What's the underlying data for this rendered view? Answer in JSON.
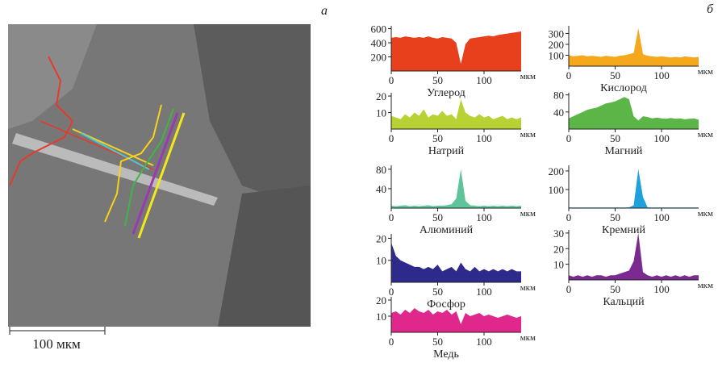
{
  "panels": {
    "a": {
      "label": "а",
      "scale_bar": "100 мкм"
    },
    "b": {
      "label": "б"
    }
  },
  "chart_data": [
    {
      "type": "area",
      "title": "Углерод",
      "xlabel": "мкм",
      "color": "#e8401c",
      "xlim": [
        0,
        140
      ],
      "xticks": [
        0,
        50,
        100
      ],
      "ylim": [
        0,
        640
      ],
      "yticks": [
        200,
        400,
        600
      ],
      "x": [
        0,
        5,
        10,
        15,
        20,
        25,
        30,
        35,
        40,
        45,
        50,
        55,
        60,
        65,
        70,
        75,
        80,
        85,
        90,
        95,
        100,
        105,
        110,
        115,
        120,
        125,
        130,
        135,
        140
      ],
      "values": [
        470,
        480,
        470,
        490,
        480,
        470,
        480,
        470,
        490,
        470,
        460,
        480,
        470,
        460,
        400,
        100,
        380,
        460,
        470,
        480,
        490,
        500,
        490,
        510,
        520,
        530,
        540,
        550,
        560
      ]
    },
    {
      "type": "area",
      "title": "Кислород",
      "xlabel": "мкм",
      "color": "#f5a81c",
      "xlim": [
        0,
        140
      ],
      "xticks": [
        0,
        50,
        100
      ],
      "ylim": [
        0,
        370
      ],
      "yticks": [
        100,
        200,
        300
      ],
      "x": [
        0,
        5,
        10,
        15,
        20,
        25,
        30,
        35,
        40,
        45,
        50,
        55,
        60,
        65,
        70,
        75,
        80,
        85,
        90,
        95,
        100,
        105,
        110,
        115,
        120,
        125,
        130,
        135,
        140
      ],
      "values": [
        100,
        90,
        95,
        100,
        90,
        95,
        90,
        85,
        95,
        90,
        85,
        95,
        100,
        110,
        120,
        350,
        110,
        95,
        90,
        85,
        90,
        85,
        80,
        85,
        80,
        90,
        85,
        80,
        85
      ]
    },
    {
      "type": "area",
      "title": "Натрий",
      "xlabel": "мкм",
      "color": "#b9d233",
      "xlim": [
        0,
        140
      ],
      "xticks": [
        0,
        50,
        100
      ],
      "ylim": [
        0,
        22
      ],
      "yticks": [
        10,
        20
      ],
      "x": [
        0,
        5,
        10,
        15,
        20,
        25,
        30,
        35,
        40,
        45,
        50,
        55,
        60,
        65,
        70,
        75,
        80,
        85,
        90,
        95,
        100,
        105,
        110,
        115,
        120,
        125,
        130,
        135,
        140
      ],
      "values": [
        8,
        7,
        6,
        9,
        7,
        10,
        8,
        12,
        7,
        9,
        8,
        11,
        8,
        9,
        6,
        18,
        10,
        8,
        7,
        9,
        7,
        8,
        6,
        7,
        8,
        6,
        7,
        6,
        7
      ]
    },
    {
      "type": "area",
      "title": "Магний",
      "xlabel": "мкм",
      "color": "#5cb547",
      "xlim": [
        0,
        140
      ],
      "xticks": [
        0,
        50,
        100
      ],
      "ylim": [
        0,
        85
      ],
      "yticks": [
        40,
        80
      ],
      "x": [
        0,
        5,
        10,
        15,
        20,
        25,
        30,
        35,
        40,
        45,
        50,
        55,
        60,
        65,
        70,
        75,
        80,
        85,
        90,
        95,
        100,
        105,
        110,
        115,
        120,
        125,
        130,
        135,
        140
      ],
      "values": [
        25,
        30,
        35,
        40,
        45,
        48,
        50,
        55,
        60,
        62,
        65,
        70,
        75,
        70,
        30,
        20,
        30,
        28,
        25,
        27,
        25,
        24,
        26,
        24,
        25,
        23,
        24,
        25,
        22
      ]
    },
    {
      "type": "area",
      "title": "Алюминий",
      "xlabel": "мкм",
      "color": "#5fc49a",
      "xlim": [
        0,
        140
      ],
      "xticks": [
        0,
        50,
        100
      ],
      "ylim": [
        0,
        88
      ],
      "yticks": [
        40,
        80
      ],
      "x": [
        0,
        5,
        10,
        15,
        20,
        25,
        30,
        35,
        40,
        45,
        50,
        55,
        60,
        65,
        70,
        75,
        80,
        85,
        90,
        95,
        100,
        105,
        110,
        115,
        120,
        125,
        130,
        135,
        140
      ],
      "values": [
        5,
        4,
        5,
        6,
        4,
        5,
        4,
        5,
        6,
        4,
        5,
        5,
        6,
        8,
        20,
        80,
        15,
        6,
        5,
        4,
        5,
        4,
        5,
        4,
        5,
        4,
        5,
        4,
        5
      ]
    },
    {
      "type": "area",
      "title": "Кремний",
      "xlabel": "мкм",
      "color": "#1fa2dc",
      "xlim": [
        0,
        140
      ],
      "xticks": [
        0,
        50,
        100
      ],
      "ylim": [
        0,
        230
      ],
      "yticks": [
        100,
        200
      ],
      "x": [
        0,
        5,
        10,
        15,
        20,
        25,
        30,
        35,
        40,
        45,
        50,
        55,
        60,
        65,
        70,
        75,
        80,
        85,
        90,
        95,
        100,
        105,
        110,
        115,
        120,
        125,
        130,
        135,
        140
      ],
      "values": [
        3,
        3,
        3,
        3,
        3,
        3,
        3,
        3,
        3,
        3,
        3,
        3,
        3,
        4,
        15,
        210,
        60,
        4,
        3,
        3,
        3,
        3,
        3,
        3,
        3,
        3,
        3,
        3,
        3
      ]
    },
    {
      "type": "area",
      "title": "Фосфор",
      "xlabel": "мкм",
      "color": "#2e2a8c",
      "xlim": [
        0,
        140
      ],
      "xticks": [
        0,
        50,
        100
      ],
      "ylim": [
        0,
        22
      ],
      "yticks": [
        10,
        20
      ],
      "x": [
        0,
        5,
        10,
        15,
        20,
        25,
        30,
        35,
        40,
        45,
        50,
        55,
        60,
        65,
        70,
        75,
        80,
        85,
        90,
        95,
        100,
        105,
        110,
        115,
        120,
        125,
        130,
        135,
        140
      ],
      "values": [
        18,
        12,
        10,
        9,
        8,
        7,
        7,
        6,
        7,
        6,
        8,
        5,
        6,
        7,
        5,
        9,
        6,
        5,
        7,
        5,
        6,
        5,
        6,
        5,
        6,
        5,
        6,
        5,
        5
      ]
    },
    {
      "type": "area",
      "title": "Кальций",
      "xlabel": "мкм",
      "color": "#7b2b8f",
      "xlim": [
        0,
        140
      ],
      "xticks": [
        0,
        50,
        100
      ],
      "ylim": [
        0,
        32
      ],
      "yticks": [
        10,
        20,
        30
      ],
      "x": [
        0,
        5,
        10,
        15,
        20,
        25,
        30,
        35,
        40,
        45,
        50,
        55,
        60,
        65,
        70,
        75,
        80,
        85,
        90,
        95,
        100,
        105,
        110,
        115,
        120,
        125,
        130,
        135,
        140
      ],
      "values": [
        3,
        2,
        3,
        2,
        3,
        2,
        3,
        3,
        2,
        3,
        3,
        4,
        5,
        6,
        12,
        30,
        5,
        3,
        2,
        3,
        2,
        3,
        2,
        3,
        2,
        3,
        2,
        3,
        3
      ]
    },
    {
      "type": "area",
      "title": "Медь",
      "xlabel": "мкм",
      "color": "#e0288c",
      "xlim": [
        0,
        140
      ],
      "xticks": [
        0,
        50,
        100
      ],
      "ylim": [
        0,
        22
      ],
      "yticks": [
        10,
        20
      ],
      "x": [
        0,
        5,
        10,
        15,
        20,
        25,
        30,
        35,
        40,
        45,
        50,
        55,
        60,
        65,
        70,
        75,
        80,
        85,
        90,
        95,
        100,
        105,
        110,
        115,
        120,
        125,
        130,
        135,
        140
      ],
      "values": [
        12,
        13,
        11,
        14,
        12,
        15,
        13,
        12,
        14,
        11,
        13,
        12,
        14,
        11,
        13,
        5,
        12,
        10,
        11,
        12,
        10,
        11,
        10,
        9,
        10,
        11,
        10,
        9,
        10
      ]
    }
  ]
}
